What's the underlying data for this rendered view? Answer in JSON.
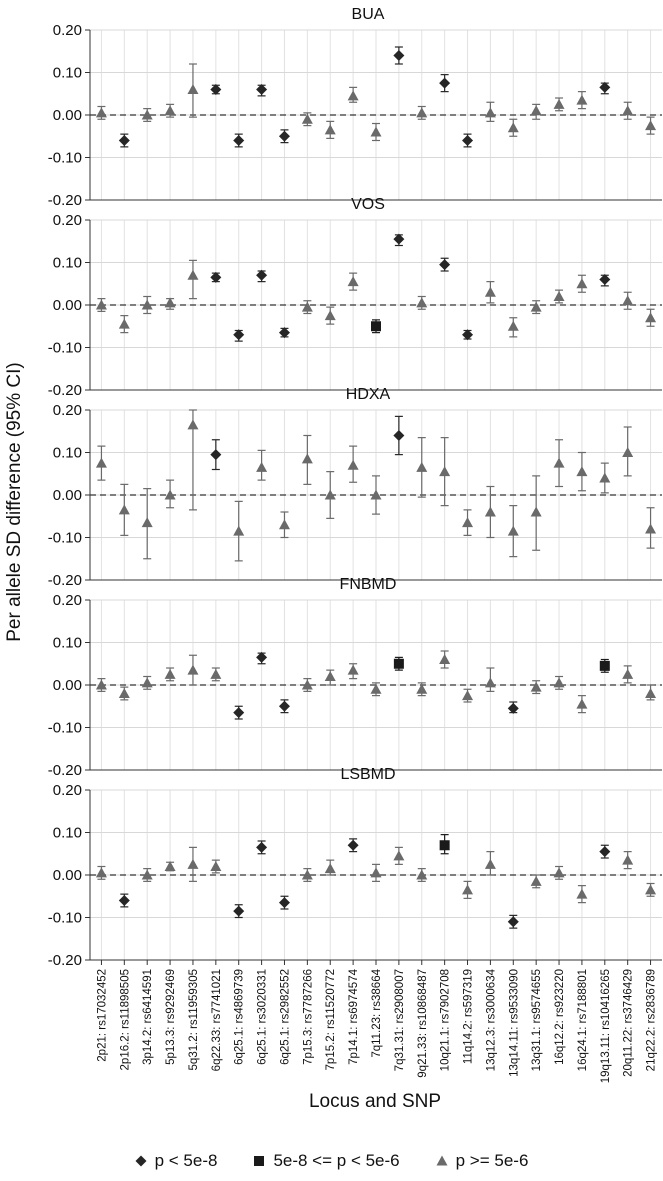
{
  "ylabel": "Per allele SD difference (95% CI)",
  "xlabel": "Locus and SNP",
  "legend": [
    {
      "label": "p < 5e-8",
      "marker": "diamond"
    },
    {
      "label": "5e-8 <= p < 5e-6",
      "marker": "square"
    },
    {
      "label": "p >= 5e-6",
      "marker": "triangle"
    }
  ],
  "chart_data": {
    "type": "scatter",
    "subtype": "point-with-error-bars (forest-style panels)",
    "ylim": [
      -0.2,
      0.2
    ],
    "yticks": [
      "0.20",
      "0.10",
      "0.00",
      "-0.10",
      "-0.20"
    ],
    "reference_line": 0,
    "grid": true,
    "legend_position": "bottom",
    "categories": [
      "2p21: rs17032452",
      "2p16.2: rs11898505",
      "3p14.2: rs6414591",
      "5p13.3: rs9292469",
      "5q31.2: rs11959305",
      "6q22.33: rs7741021",
      "6q25.1: rs4869739",
      "6q25.1: rs3020331",
      "6q25.1: rs2982552",
      "7p15.3: rs7787266",
      "7p15.2: rs11520772",
      "7p14.1: rs6974574",
      "7q11.23: rs38664",
      "7q31.31: rs2908007",
      "9q21.33: rs10868487",
      "10q21.1: rs7902708",
      "11q14.2: rs597319",
      "13q12.3: rs3000634",
      "13q14.11: rs9533090",
      "13q31.1: rs9574655",
      "16q12.2: rs923220",
      "16q24.1: rs7188801",
      "19q13.11: rs10416265",
      "20q11.22: rs3746429",
      "21q22.2: rs2836789"
    ],
    "panels": [
      {
        "title": "BUA",
        "est": [
          0.005,
          -0.06,
          0.0,
          0.01,
          0.06,
          0.06,
          -0.06,
          0.06,
          -0.05,
          -0.01,
          -0.035,
          0.045,
          -0.04,
          0.14,
          0.005,
          0.075,
          -0.06,
          0.005,
          -0.03,
          0.01,
          0.025,
          0.035,
          0.065,
          0.01,
          -0.025
        ],
        "lo": [
          -0.01,
          -0.075,
          -0.015,
          -0.005,
          -0.005,
          0.05,
          -0.075,
          0.045,
          -0.065,
          -0.025,
          -0.055,
          0.03,
          -0.06,
          0.12,
          -0.01,
          0.055,
          -0.075,
          -0.015,
          -0.05,
          -0.01,
          0.01,
          0.015,
          0.05,
          -0.01,
          -0.045
        ],
        "hi": [
          0.02,
          -0.045,
          0.015,
          0.025,
          0.12,
          0.07,
          -0.045,
          0.07,
          -0.035,
          0.005,
          -0.015,
          0.065,
          -0.02,
          0.16,
          0.02,
          0.095,
          -0.045,
          0.03,
          -0.01,
          0.025,
          0.04,
          0.055,
          0.075,
          0.03,
          -0.005
        ],
        "marker": [
          "t",
          "d",
          "t",
          "t",
          "t",
          "d",
          "d",
          "d",
          "d",
          "t",
          "t",
          "t",
          "t",
          "d",
          "t",
          "d",
          "d",
          "t",
          "t",
          "t",
          "t",
          "t",
          "d",
          "t",
          "t"
        ]
      },
      {
        "title": "VOS",
        "est": [
          0.0,
          -0.045,
          0.0,
          0.005,
          0.07,
          0.065,
          -0.07,
          0.07,
          -0.065,
          -0.005,
          -0.025,
          0.055,
          -0.05,
          0.155,
          0.005,
          0.095,
          -0.07,
          0.03,
          -0.05,
          -0.005,
          0.02,
          0.05,
          0.06,
          0.01,
          -0.03
        ],
        "lo": [
          -0.015,
          -0.065,
          -0.02,
          -0.01,
          0.015,
          0.055,
          -0.085,
          0.055,
          -0.075,
          -0.02,
          -0.045,
          0.035,
          -0.065,
          0.14,
          -0.01,
          0.08,
          -0.08,
          0.005,
          -0.075,
          -0.02,
          0.005,
          0.03,
          0.045,
          -0.01,
          -0.05
        ],
        "hi": [
          0.015,
          -0.025,
          0.02,
          0.015,
          0.105,
          0.075,
          -0.06,
          0.08,
          -0.055,
          0.01,
          -0.005,
          0.075,
          -0.035,
          0.165,
          0.02,
          0.11,
          -0.06,
          0.055,
          -0.03,
          0.01,
          0.035,
          0.07,
          0.07,
          0.03,
          -0.01
        ],
        "marker": [
          "t",
          "t",
          "t",
          "t",
          "t",
          "d",
          "d",
          "d",
          "d",
          "t",
          "t",
          "t",
          "s",
          "d",
          "t",
          "d",
          "d",
          "t",
          "t",
          "t",
          "t",
          "t",
          "d",
          "t",
          "t"
        ]
      },
      {
        "title": "HDXA",
        "est": [
          0.075,
          -0.035,
          -0.065,
          0.0,
          0.165,
          0.095,
          -0.085,
          0.065,
          -0.07,
          0.085,
          0.0,
          0.07,
          0.0,
          0.14,
          0.065,
          0.055,
          -0.065,
          -0.04,
          -0.085,
          -0.04,
          0.075,
          0.055,
          0.04,
          0.1,
          -0.08
        ],
        "lo": [
          0.035,
          -0.095,
          -0.15,
          -0.03,
          -0.035,
          0.06,
          -0.155,
          0.035,
          -0.1,
          0.025,
          -0.055,
          0.03,
          -0.045,
          0.095,
          -0.005,
          -0.025,
          -0.095,
          -0.1,
          -0.145,
          -0.13,
          0.02,
          0.01,
          0.005,
          0.045,
          -0.125
        ],
        "hi": [
          0.115,
          0.025,
          0.015,
          0.035,
          0.2,
          0.13,
          -0.015,
          0.105,
          -0.04,
          0.14,
          0.055,
          0.115,
          0.045,
          0.185,
          0.135,
          0.135,
          -0.035,
          0.02,
          -0.025,
          0.045,
          0.13,
          0.1,
          0.075,
          0.16,
          -0.03
        ],
        "marker": [
          "t",
          "t",
          "t",
          "t",
          "t",
          "d",
          "t",
          "t",
          "t",
          "t",
          "t",
          "t",
          "t",
          "d",
          "t",
          "t",
          "t",
          "t",
          "t",
          "t",
          "t",
          "t",
          "t",
          "t",
          "t"
        ]
      },
      {
        "title": "FNBMD",
        "est": [
          0.0,
          -0.02,
          0.005,
          0.025,
          0.035,
          0.025,
          -0.065,
          0.065,
          -0.05,
          0.0,
          0.02,
          0.035,
          -0.01,
          0.05,
          -0.01,
          0.06,
          -0.025,
          0.005,
          -0.055,
          -0.005,
          0.005,
          -0.045,
          0.045,
          0.025,
          -0.02
        ],
        "lo": [
          -0.015,
          -0.035,
          -0.01,
          0.01,
          0.0,
          0.01,
          -0.08,
          0.05,
          -0.065,
          -0.015,
          0.0,
          0.015,
          -0.025,
          0.035,
          -0.025,
          0.04,
          -0.04,
          -0.015,
          -0.065,
          -0.02,
          -0.01,
          -0.065,
          0.03,
          0.005,
          -0.035
        ],
        "hi": [
          0.015,
          -0.005,
          0.02,
          0.04,
          0.07,
          0.04,
          -0.05,
          0.075,
          -0.035,
          0.015,
          0.035,
          0.05,
          0.005,
          0.065,
          0.005,
          0.08,
          -0.01,
          0.04,
          -0.04,
          0.01,
          0.02,
          -0.025,
          0.06,
          0.045,
          0.0
        ],
        "marker": [
          "t",
          "t",
          "t",
          "t",
          "t",
          "t",
          "d",
          "d",
          "d",
          "t",
          "t",
          "t",
          "t",
          "s",
          "t",
          "t",
          "t",
          "t",
          "d",
          "t",
          "t",
          "t",
          "s",
          "t",
          "t"
        ]
      },
      {
        "title": "LSBMD",
        "est": [
          0.005,
          -0.06,
          0.0,
          0.02,
          0.025,
          0.02,
          -0.085,
          0.065,
          -0.065,
          0.0,
          0.015,
          0.07,
          0.005,
          0.045,
          0.0,
          0.07,
          -0.035,
          0.025,
          -0.11,
          -0.015,
          0.005,
          -0.045,
          0.055,
          0.035,
          -0.035
        ],
        "lo": [
          -0.01,
          -0.075,
          -0.015,
          0.01,
          -0.015,
          0.005,
          -0.1,
          0.05,
          -0.08,
          -0.015,
          0.0,
          0.055,
          -0.015,
          0.025,
          -0.015,
          0.05,
          -0.055,
          0.0,
          -0.125,
          -0.03,
          -0.01,
          -0.065,
          0.04,
          0.015,
          -0.05
        ],
        "hi": [
          0.02,
          -0.045,
          0.015,
          0.03,
          0.065,
          0.035,
          -0.07,
          0.08,
          -0.05,
          0.015,
          0.035,
          0.085,
          0.025,
          0.065,
          0.015,
          0.095,
          -0.015,
          0.055,
          -0.095,
          0.0,
          0.02,
          -0.025,
          0.07,
          0.055,
          -0.02
        ],
        "marker": [
          "t",
          "d",
          "t",
          "t",
          "t",
          "t",
          "d",
          "d",
          "d",
          "t",
          "t",
          "d",
          "t",
          "t",
          "t",
          "s",
          "t",
          "t",
          "d",
          "t",
          "t",
          "t",
          "d",
          "t",
          "t"
        ]
      }
    ]
  }
}
